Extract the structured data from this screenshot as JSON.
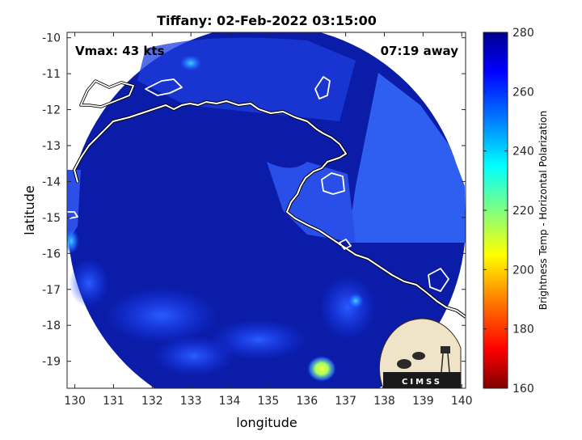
{
  "chart_data": {
    "type": "heatmap",
    "title": "Tiffany: 02-Feb-2022 03:15:00",
    "xlabel": "longitude",
    "ylabel": "latitude",
    "xlim": [
      129.8,
      140.1
    ],
    "ylim": [
      -19.75,
      -9.85
    ],
    "xticks": [
      130,
      131,
      132,
      133,
      134,
      135,
      136,
      137,
      138,
      139,
      140
    ],
    "yticks": [
      -10,
      -11,
      -12,
      -13,
      -14,
      -15,
      -16,
      -17,
      -18,
      -19
    ],
    "annotations": {
      "vmax": "Vmax: 43 kts",
      "time_away": "07:19 away"
    },
    "colorbar": {
      "label": "Brightness Temp - Horizontal Polarization",
      "range": [
        160,
        280
      ],
      "ticks": [
        160,
        180,
        200,
        220,
        240,
        260,
        280
      ],
      "colors": [
        "#7f0000",
        "#ff0000",
        "#ff8000",
        "#ffff00",
        "#80ff80",
        "#00ffff",
        "#0080ff",
        "#0000ff",
        "#00008f"
      ]
    },
    "swath": {
      "center": [
        134.95,
        -14.8
      ],
      "radius_deg": 4.9
    },
    "dominant_values": {
      "land": 268,
      "sea_east": 245,
      "sea_west": 250,
      "warm_spot_lat": -19.2,
      "warm_spot_lon": 136.3,
      "warm_spot_value": 212
    },
    "logo": "CIMSS"
  }
}
